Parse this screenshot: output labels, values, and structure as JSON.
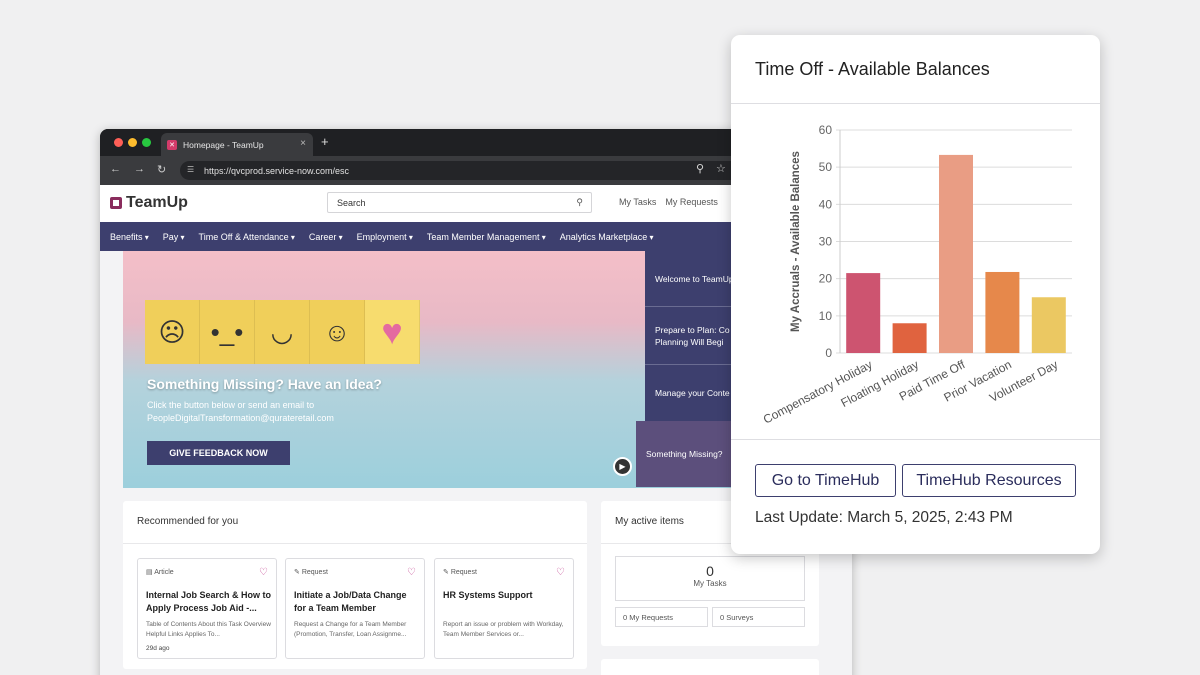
{
  "browser": {
    "tab_title": "Homepage - TeamUp",
    "tab_close": "×",
    "new_tab": "+",
    "url": "https://qvcprod.service-now.com/esc"
  },
  "header": {
    "logo_text": "TeamUp",
    "search_placeholder": "Search",
    "links": [
      "My Tasks",
      "My Requests"
    ]
  },
  "menu": [
    "Benefits",
    "Pay",
    "Time Off & Attendance",
    "Career",
    "Employment",
    "Team Member Management",
    "Analytics Marketplace"
  ],
  "hero": {
    "title": "Something Missing? Have an Idea?",
    "subtitle_line1": "Click the button below or send an email to",
    "subtitle_line2": "PeopleDigitalTransformation@qurateretail.com",
    "button": "GIVE FEEDBACK NOW"
  },
  "side_tiles": [
    "Welcome to TeamUp",
    "Prepare to Plan: Co",
    "Planning Will Begi",
    "Manage your Conte",
    "Something Missing?"
  ],
  "recommended": {
    "title": "Recommended for you",
    "items": [
      {
        "type": "Article",
        "title": "Internal Job Search & How to Apply Process Job Aid -...",
        "desc": "Table of Contents About this Task Overview Helpful Links Applies To...",
        "date": "29d ago"
      },
      {
        "type": "Request",
        "title": "Initiate a Job/Data Change for a Team Member",
        "desc": "Request a Change for a Team Member (Promotion, Transfer, Loan Assignme...",
        "date": ""
      },
      {
        "type": "Request",
        "title": "HR Systems Support",
        "desc": "Report an issue or problem with Workday, Team Member Services or...",
        "date": ""
      }
    ]
  },
  "active_items": {
    "title": "My active items",
    "tasks_count": "0",
    "tasks_label": "My Tasks",
    "requests": "0  My Requests",
    "surveys": "0  Surveys"
  },
  "popover": {
    "title": "Time Off - Available Balances",
    "buttons": [
      "Go to TimeHub",
      "TimeHub Resources"
    ],
    "last_update": "Last Update: March 5, 2025, 2:43 PM"
  },
  "chart_data": {
    "type": "bar",
    "categories": [
      "Compensatory Holiday",
      "Floating Holiday",
      "Paid Time Off",
      "Prior Vacation",
      "Volunteer Day"
    ],
    "values": [
      21.5,
      8,
      53.3,
      21.8,
      15
    ],
    "colors": [
      "#cd5470",
      "#e0633f",
      "#e99d84",
      "#e6884b",
      "#ebc862"
    ],
    "ylabel": "My Accruals - Available Balances",
    "xlabel": "",
    "ylim": [
      0,
      60
    ],
    "yticks": [
      0,
      10,
      20,
      30,
      40,
      50,
      60
    ],
    "grid": true
  }
}
